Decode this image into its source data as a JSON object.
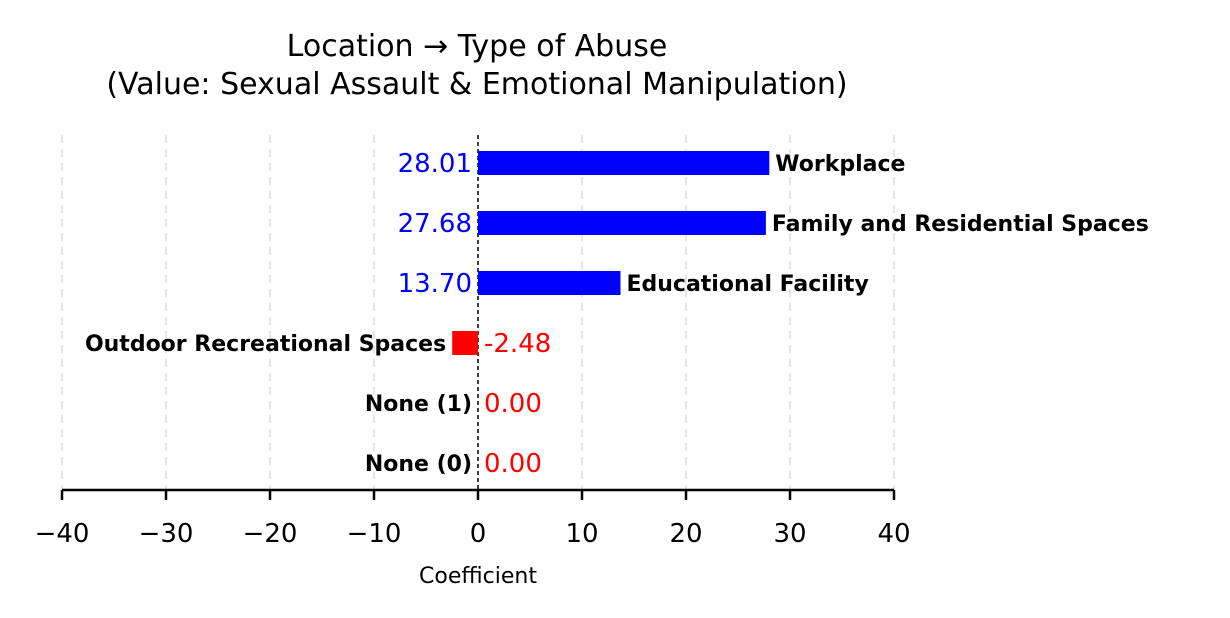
{
  "chart_data": {
    "type": "bar",
    "orientation": "horizontal",
    "title": "Location → Type of Abuse\n(Value: Sexual Assault & Emotional Manipulation)",
    "xlabel": "Coefficient",
    "ylabel": "",
    "xlim": [
      -40,
      40
    ],
    "xticks": [
      -40,
      -30,
      -20,
      -10,
      0,
      10,
      20,
      30,
      40
    ],
    "xtick_labels": [
      "−40",
      "−30",
      "−20",
      "−10",
      "0",
      "10",
      "20",
      "30",
      "40"
    ],
    "categories": [
      "Workplace",
      "Family and Residential Spaces",
      "Educational Facility",
      "Outdoor Recreational Spaces",
      "None (1)",
      "None (0)"
    ],
    "values": [
      28.01,
      27.68,
      13.7,
      -2.48,
      0.0,
      0.0
    ],
    "value_labels": [
      "28.01",
      "27.68",
      "13.70",
      "-2.48",
      "0.00",
      "0.00"
    ],
    "grid": "x-dashed",
    "zero_line": "dashed",
    "colors": {
      "positive": "#0000ff",
      "negative_or_zero": "#ff0000",
      "grid": "#e6e6e6",
      "axis": "#000000"
    }
  }
}
